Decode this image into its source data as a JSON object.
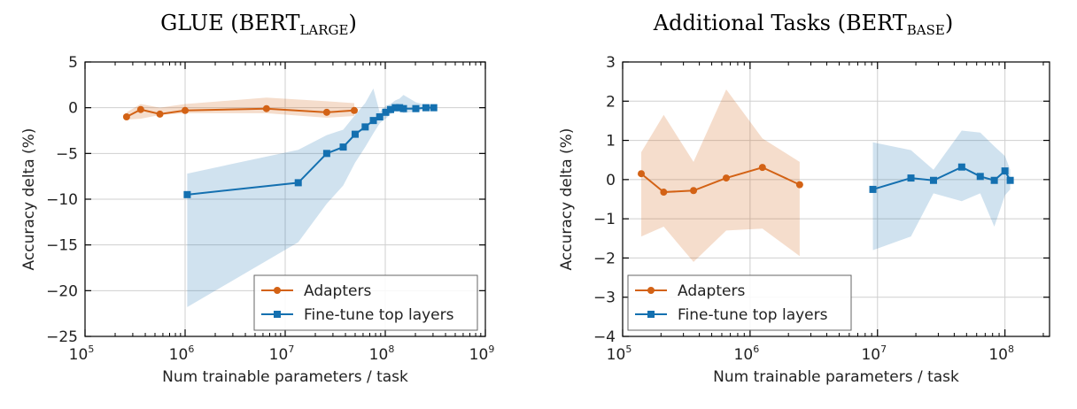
{
  "chart_data": [
    {
      "type": "line",
      "title_main": "GLUE (BERT",
      "title_sub": "LARGE",
      "title_end": ")",
      "xlabel": "Num trainable parameters / task",
      "ylabel": "Accuracy delta (%)",
      "xscale": "log",
      "xlim_exp": [
        5,
        9
      ],
      "ylim": [
        -25,
        5
      ],
      "yticks": [
        "5",
        "0",
        "−5",
        "−10",
        "−15",
        "−20",
        "−25"
      ],
      "ytick_values": [
        5,
        0,
        -5,
        -10,
        -15,
        -20,
        -25
      ],
      "xtick_exps": [
        "5",
        "6",
        "7",
        "8",
        "9"
      ],
      "xtick_base": "10",
      "grid": true,
      "legend_position": "lower-right",
      "series": [
        {
          "name": "Adapters",
          "color": "#d36215",
          "marker": "circle",
          "x": [
            260000,
            360000,
            560000,
            1000000,
            6500000,
            26000000,
            49000000
          ],
          "y": [
            -1.0,
            -0.2,
            -0.7,
            -0.3,
            -0.1,
            -0.5,
            -0.3
          ],
          "band_low": [
            -1.3,
            -1.2,
            -0.8,
            -0.6,
            -0.6,
            -1.1,
            -0.9
          ],
          "band_high": [
            -0.5,
            0.4,
            0.0,
            0.4,
            1.1,
            0.7,
            0.5
          ]
        },
        {
          "name": "Fine-tune top layers",
          "color": "#1470b0",
          "marker": "square",
          "x": [
            1050000,
            13500000,
            26000000,
            38000000,
            50000000,
            63000000,
            76000000,
            88000000,
            101000000,
            113000000,
            126000000,
            139000000,
            152000000,
            202000000,
            255000000,
            305000000
          ],
          "y": [
            -9.5,
            -8.2,
            -5.0,
            -4.3,
            -2.9,
            -2.1,
            -1.4,
            -1.0,
            -0.5,
            -0.2,
            0.0,
            0.0,
            -0.1,
            -0.1,
            0.0,
            0.0
          ],
          "band_low": [
            -21.8,
            -14.7,
            -10.5,
            -8.5,
            -6.0,
            -4.3,
            -2.8,
            -1.7,
            -1.2,
            -0.7,
            -0.4,
            -0.3,
            -0.6,
            -0.4,
            -0.2,
            -0.2
          ],
          "band_high": [
            -7.2,
            -4.6,
            -3.0,
            -2.4,
            -0.8,
            0.5,
            2.1,
            -0.5,
            0.2,
            0.4,
            0.8,
            1.0,
            1.4,
            0.6,
            0.3,
            0.2
          ]
        }
      ]
    },
    {
      "type": "line",
      "title_main": "Additional Tasks (BERT",
      "title_sub": "BASE",
      "title_end": ")",
      "xlabel": "Num trainable parameters / task",
      "ylabel": "Accuracy delta (%)",
      "xscale": "log",
      "xlim_exp": [
        5,
        8.35
      ],
      "ylim": [
        -4,
        3
      ],
      "yticks": [
        "3",
        "2",
        "1",
        "0",
        "−1",
        "−2",
        "−3",
        "−4"
      ],
      "ytick_values": [
        3,
        2,
        1,
        0,
        -1,
        -2,
        -3,
        -4
      ],
      "xtick_exps": [
        "5",
        "6",
        "7",
        "8"
      ],
      "xtick_base": "10",
      "grid": true,
      "legend_position": "lower-left",
      "series": [
        {
          "name": "Adapters",
          "color": "#d36215",
          "marker": "circle",
          "x": [
            140000,
            210000,
            360000,
            650000,
            1250000,
            2450000
          ],
          "y": [
            0.15,
            -0.32,
            -0.28,
            0.04,
            0.31,
            -0.13
          ],
          "band_low": [
            -1.45,
            -1.2,
            -2.1,
            -1.3,
            -1.25,
            -1.95
          ],
          "band_high": [
            0.7,
            1.65,
            0.45,
            2.3,
            1.05,
            0.45
          ]
        },
        {
          "name": "Fine-tune top layers",
          "color": "#1470b0",
          "marker": "square",
          "x": [
            9200000,
            18300000,
            27500000,
            45800000,
            64000000,
            82500000,
            100000000,
            110000000
          ],
          "y": [
            -0.25,
            0.04,
            -0.02,
            0.32,
            0.08,
            -0.02,
            0.22,
            -0.02
          ],
          "band_low": [
            -1.8,
            -1.45,
            -0.35,
            -0.55,
            -0.35,
            -1.2,
            -0.4,
            -0.25
          ],
          "band_high": [
            0.95,
            0.75,
            0.25,
            1.25,
            1.2,
            0.85,
            0.6,
            0.25
          ]
        }
      ]
    }
  ]
}
